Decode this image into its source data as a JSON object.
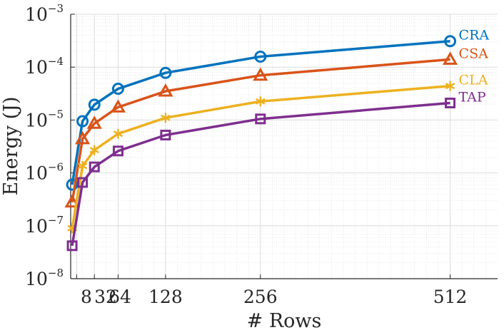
{
  "chart_data": {
    "type": "line",
    "title": "",
    "xlabel": "# Rows",
    "ylabel": "Energy (J)",
    "y_scale": "log",
    "xlim": [
      0,
      576
    ],
    "ylim": [
      1e-08,
      0.001
    ],
    "grid": true,
    "minor_grid": true,
    "x_ticks": [
      8,
      32,
      64,
      128,
      256,
      512
    ],
    "x_tick_labels": [
      "8",
      "32",
      "64",
      "128",
      "256",
      "512"
    ],
    "y_ticks": [
      {
        "value": 1e-08,
        "base": "10",
        "exp": "−8"
      },
      {
        "value": 1e-07,
        "base": "10",
        "exp": "−7"
      },
      {
        "value": 1e-06,
        "base": "10",
        "exp": "−6"
      },
      {
        "value": 1e-05,
        "base": "10",
        "exp": "−5"
      },
      {
        "value": 0.0001,
        "base": "10",
        "exp": "−4"
      },
      {
        "value": 0.001,
        "base": "10",
        "exp": "−3"
      }
    ],
    "x": [
      2,
      16,
      32,
      64,
      128,
      256,
      512
    ],
    "series": [
      {
        "name": "CRA",
        "color": "#0072BD",
        "marker": "circle",
        "values": [
          6e-07,
          9.5e-06,
          1.95e-05,
          3.9e-05,
          7.8e-05,
          0.000158,
          0.00031
        ]
      },
      {
        "name": "CSA",
        "color": "#D95319",
        "marker": "triangle",
        "values": [
          2.8e-07,
          4.4e-06,
          8.6e-06,
          1.75e-05,
          3.5e-05,
          7e-05,
          0.00014
        ]
      },
      {
        "name": "CLA",
        "color": "#EDB120",
        "marker": "asterisk",
        "values": [
          9e-08,
          1.35e-06,
          2.7e-06,
          5.5e-06,
          1.1e-05,
          2.25e-05,
          4.4e-05
        ]
      },
      {
        "name": "TAP",
        "color": "#7E2F8E",
        "marker": "square",
        "values": [
          4.2e-08,
          6.6e-07,
          1.3e-06,
          2.6e-06,
          5.2e-06,
          1.05e-05,
          2.1e-05
        ]
      }
    ]
  }
}
